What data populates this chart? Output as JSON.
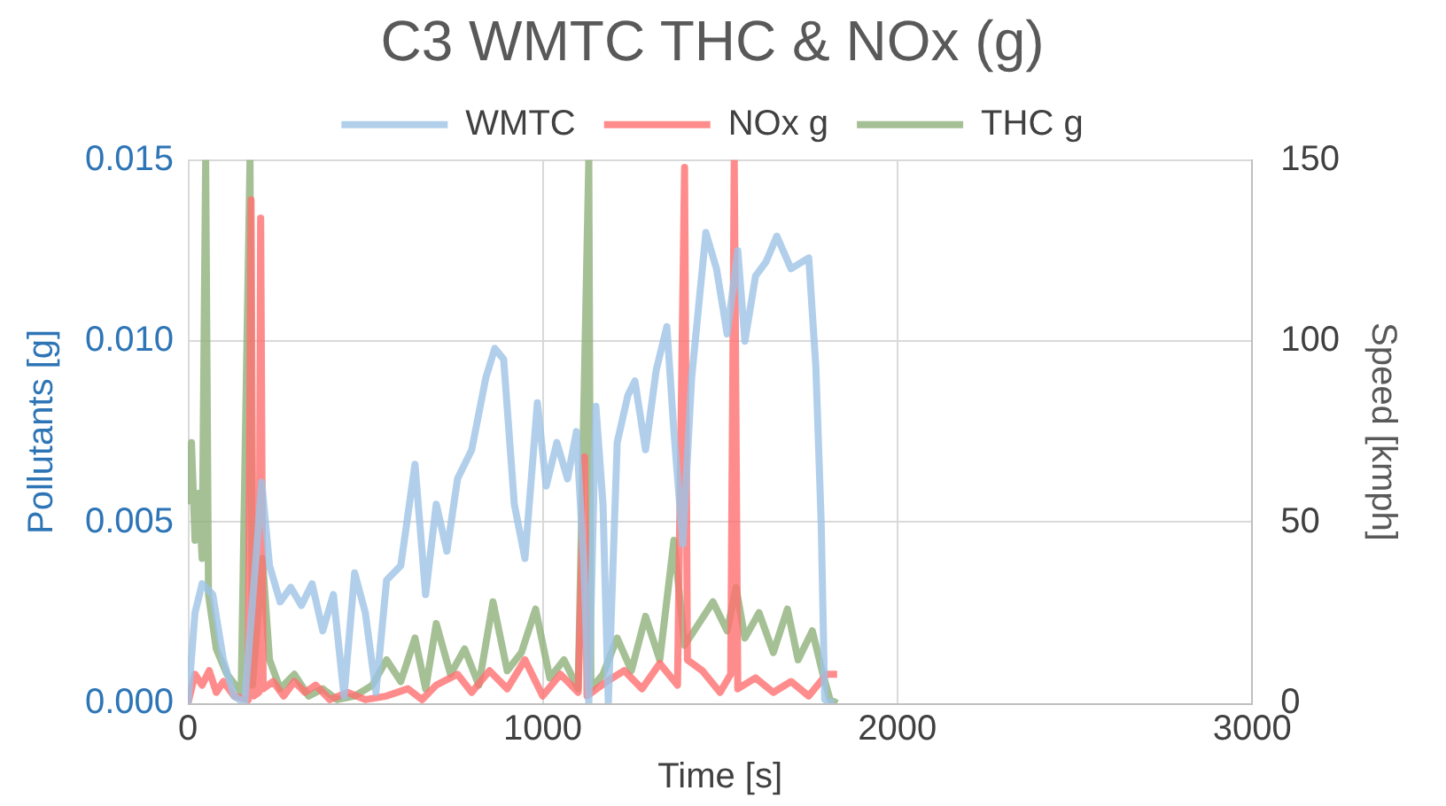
{
  "chart_data": {
    "type": "line",
    "title": "C3 WMTC THC & NOx (g)",
    "xlabel": "Time [s]",
    "ylabel": "Pollutants [g]",
    "y2label": "Speed [kmph]",
    "xlim": [
      0,
      3000
    ],
    "xticks": [
      0,
      1000,
      2000,
      3000
    ],
    "ylim": [
      0,
      0.015
    ],
    "yticks": [
      {
        "value": 0,
        "label": "0.000"
      },
      {
        "value": 0.005,
        "label": "0.005"
      },
      {
        "value": 0.01,
        "label": "0.010"
      },
      {
        "value": 0.015,
        "label": "0.015"
      }
    ],
    "y2lim": [
      0,
      150
    ],
    "y2ticks": [
      0,
      50,
      100,
      150
    ],
    "grid": true,
    "legend": "top",
    "marker": "none",
    "line_style": "solid",
    "series": [
      {
        "name": "NOx g",
        "color": "#ff6f6f",
        "x": [
          0,
          20,
          40,
          60,
          80,
          100,
          130,
          170,
          178,
          185,
          200,
          205,
          212,
          240,
          270,
          300,
          330,
          360,
          400,
          450,
          500,
          560,
          620,
          660,
          700,
          760,
          800,
          850,
          900,
          950,
          1000,
          1050,
          1100,
          1118,
          1125,
          1180,
          1230,
          1280,
          1330,
          1380,
          1400,
          1408,
          1450,
          1500,
          1530,
          1540,
          1550,
          1600,
          1650,
          1700,
          1750,
          1800,
          1830
        ],
        "values": [
          0,
          0.0008,
          0.0005,
          0.0009,
          0.0003,
          0.0006,
          0.0002,
          0.0001,
          0.0139,
          0.0002,
          0.0003,
          0.0134,
          0.0004,
          0.0006,
          0.0002,
          0.0006,
          0.0003,
          0.0005,
          0.0001,
          0.0003,
          0.0001,
          0.0002,
          0.0004,
          0.0001,
          0.0005,
          0.0008,
          0.0003,
          0.0009,
          0.0004,
          0.0012,
          0.0002,
          0.0008,
          0.0003,
          0.0068,
          0.0002,
          0.0006,
          0.0009,
          0.0004,
          0.0011,
          0.0005,
          0.0148,
          0.0012,
          0.0009,
          0.0003,
          0.0008,
          0.015,
          0.0004,
          0.0007,
          0.0003,
          0.0006,
          0.0002,
          0.0008,
          0.0008
        ]
      },
      {
        "name": "THC g",
        "color": "#8fb07a",
        "x": [
          0,
          10,
          20,
          30,
          40,
          50,
          58,
          80,
          110,
          150,
          175,
          182,
          210,
          230,
          260,
          300,
          340,
          380,
          420,
          470,
          520,
          560,
          600,
          640,
          670,
          700,
          740,
          780,
          820,
          860,
          900,
          940,
          980,
          1020,
          1060,
          1100,
          1130,
          1136,
          1170,
          1210,
          1250,
          1290,
          1330,
          1370,
          1400,
          1440,
          1480,
          1520,
          1545,
          1570,
          1610,
          1650,
          1690,
          1720,
          1760,
          1790,
          1810,
          1830
        ],
        "values": [
          0.0055,
          0.0072,
          0.0045,
          0.0058,
          0.004,
          0.015,
          0.003,
          0.0015,
          0.0008,
          0.0003,
          0.015,
          0.0005,
          0.004,
          0.0012,
          0.0004,
          0.0008,
          0.0002,
          0.0004,
          0.0001,
          0.0002,
          0.0005,
          0.0012,
          0.0006,
          0.0018,
          0.0004,
          0.0022,
          0.0008,
          0.0015,
          0.0005,
          0.0028,
          0.0009,
          0.0014,
          0.0026,
          0.0007,
          0.0012,
          0.0004,
          0.015,
          0.0004,
          0.0008,
          0.0018,
          0.0009,
          0.0024,
          0.0012,
          0.0045,
          0.0016,
          0.0022,
          0.0028,
          0.002,
          0.0032,
          0.0018,
          0.0025,
          0.0014,
          0.0026,
          0.0012,
          0.002,
          0.0008,
          0.0001,
          0
        ]
      },
      {
        "name": "WMTC",
        "color": "#9dc3e6",
        "axis": "y2",
        "x": [
          0,
          20,
          40,
          70,
          100,
          130,
          160,
          190,
          208,
          230,
          260,
          290,
          320,
          350,
          380,
          410,
          440,
          470,
          500,
          530,
          560,
          600,
          640,
          670,
          700,
          730,
          760,
          800,
          840,
          865,
          890,
          920,
          950,
          985,
          1010,
          1040,
          1070,
          1095,
          1115,
          1130,
          1150,
          1170,
          1185,
          1210,
          1240,
          1260,
          1290,
          1320,
          1350,
          1370,
          1395,
          1420,
          1460,
          1490,
          1520,
          1550,
          1570,
          1600,
          1630,
          1660,
          1700,
          1750,
          1770,
          1785,
          1795,
          1820
        ],
        "values": [
          0,
          25,
          33,
          30,
          12,
          2,
          0,
          38,
          61,
          38,
          28,
          32,
          27,
          33,
          20,
          30,
          2,
          36,
          25,
          3,
          34,
          38,
          66,
          30,
          55,
          42,
          62,
          70,
          90,
          98,
          95,
          55,
          40,
          83,
          60,
          72,
          62,
          75,
          40,
          0,
          82,
          55,
          0,
          72,
          85,
          89,
          70,
          92,
          104,
          75,
          44,
          90,
          130,
          120,
          102,
          125,
          100,
          118,
          122,
          129,
          120,
          123,
          93,
          50,
          1,
          0
        ]
      }
    ]
  }
}
